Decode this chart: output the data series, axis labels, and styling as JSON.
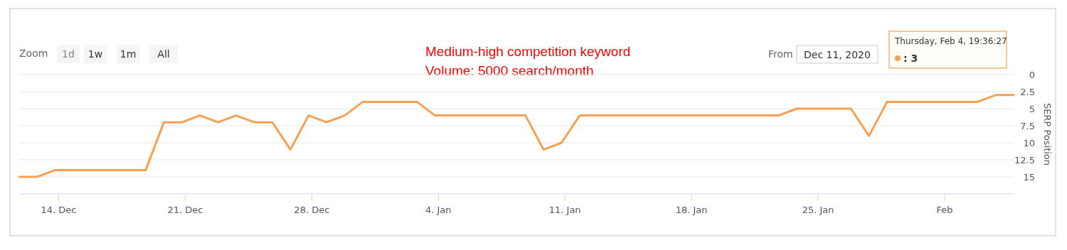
{
  "chart_data": {
    "type": "line",
    "ylabel": "SERP Position",
    "annotations": [
      "Medium-high competition keyword",
      "Volume: 5000 search/month",
      "Zoom",
      "1d",
      "1w",
      "1m",
      "All",
      "From",
      "Dec 11, 2020",
      "Thursday, Feb 4, 19:36:27",
      ": 3"
    ],
    "x": [
      "2020-12-11T19:36",
      "2020-12-12T19:36",
      "2020-12-13T19:36",
      "2020-12-14T19:36",
      "2020-12-15T19:36",
      "2020-12-16T19:36",
      "2020-12-17T19:36",
      "2020-12-18T19:36",
      "2020-12-19T19:36",
      "2020-12-20T19:36",
      "2020-12-21T19:36",
      "2020-12-22T19:36",
      "2020-12-23T19:36",
      "2020-12-24T19:36",
      "2020-12-25T19:36",
      "2020-12-26T19:36",
      "2020-12-27T19:36",
      "2020-12-28T19:36",
      "2020-12-29T19:36",
      "2020-12-30T19:36",
      "2020-12-31T19:36",
      "2021-01-01T19:36",
      "2021-01-02T19:36",
      "2021-01-03T19:36",
      "2021-01-04T19:36",
      "2021-01-05T19:36",
      "2021-01-06T19:36",
      "2021-01-07T19:36",
      "2021-01-08T19:36",
      "2021-01-09T19:36",
      "2021-01-10T19:36",
      "2021-01-11T19:36",
      "2021-01-12T19:36",
      "2021-01-13T19:36",
      "2021-01-14T19:36",
      "2021-01-15T19:36",
      "2021-01-16T19:36",
      "2021-01-17T19:36",
      "2021-01-18T19:36",
      "2021-01-19T19:36",
      "2021-01-20T19:36",
      "2021-01-21T19:36",
      "2021-01-22T19:36",
      "2021-01-23T19:36",
      "2021-01-24T19:36",
      "2021-01-25T19:36",
      "2021-01-26T19:36",
      "2021-01-27T19:36",
      "2021-01-28T19:36",
      "2021-01-29T19:36",
      "2021-01-30T19:36",
      "2021-01-31T19:36",
      "2021-02-01T19:36",
      "2021-02-02T19:36",
      "2021-02-03T19:36",
      "2021-02-04T19:36"
    ],
    "series": [
      {
        "color": "#f7a052",
        "values": [
          15,
          15,
          14,
          14,
          14,
          14,
          14,
          14,
          7,
          7,
          6,
          7,
          6,
          7,
          7,
          11,
          6,
          7,
          6,
          4,
          4,
          4,
          4,
          6,
          6,
          6,
          6,
          6,
          6,
          11,
          10,
          6,
          6,
          6,
          6,
          6,
          6,
          6,
          6,
          6,
          6,
          6,
          6,
          5,
          5,
          5,
          5,
          9,
          4,
          4,
          4,
          4,
          4,
          4,
          3,
          3
        ]
      }
    ],
    "xlim": [
      "2020-12-11T19:36",
      "2021-02-04T19:36"
    ],
    "xticks": [
      {
        "value": "2020-12-14",
        "label": "14. Dec"
      },
      {
        "value": "2020-12-21",
        "label": "21. Dec"
      },
      {
        "value": "2020-12-28",
        "label": "28. Dec"
      },
      {
        "value": "2021-01-04",
        "label": "4. Jan"
      },
      {
        "value": "2021-01-11",
        "label": "11. Jan"
      },
      {
        "value": "2021-01-18",
        "label": "18. Jan"
      },
      {
        "value": "2021-01-25",
        "label": "25. Jan"
      },
      {
        "value": "2021-02-01",
        "label": "Feb"
      }
    ],
    "ylim": [
      17.5,
      0
    ],
    "yticks": [
      0,
      2.5,
      5,
      7.5,
      10,
      12.5,
      15
    ],
    "grid": "y",
    "marker": "none",
    "line_style": "solid"
  }
}
